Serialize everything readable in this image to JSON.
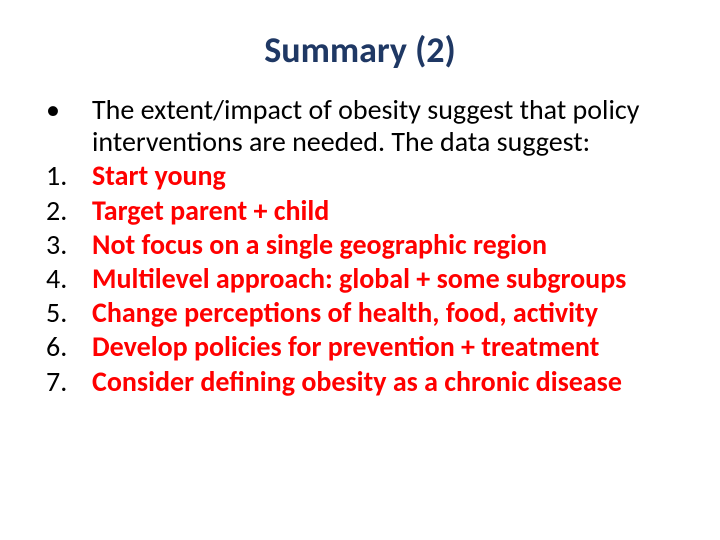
{
  "title": {
    "text": "Summary (2)",
    "color": "#1f3864",
    "fontsize": 36
  },
  "body": {
    "marker_color": "#000000",
    "fontsize": 28,
    "intro": {
      "marker": "•",
      "text": "The extent/impact of obesity suggest that policy interventions are needed.  The data suggest:",
      "color": "#000000",
      "bold": false
    },
    "items": [
      {
        "marker": "1.",
        "text": "Start young",
        "color": "#ff0000",
        "bold": true
      },
      {
        "marker": "2.",
        "text": "Target parent + child",
        "color": "#ff0000",
        "bold": true
      },
      {
        "marker": "3.",
        "text": "Not focus on a single geographic region",
        "color": "#ff0000",
        "bold": true
      },
      {
        "marker": "4.",
        "text": "Multilevel approach: global + some subgroups",
        "color": "#ff0000",
        "bold": true
      },
      {
        "marker": "5.",
        "text": "Change perceptions of health, food, activity",
        "color": "#ff0000",
        "bold": true
      },
      {
        "marker": "6.",
        "text": "Develop policies for prevention + treatment",
        "color": "#ff0000",
        "bold": true
      },
      {
        "marker": "7.",
        "text": "Consider defining obesity as a chronic disease",
        "color": "#ff0000",
        "bold": true
      }
    ]
  }
}
